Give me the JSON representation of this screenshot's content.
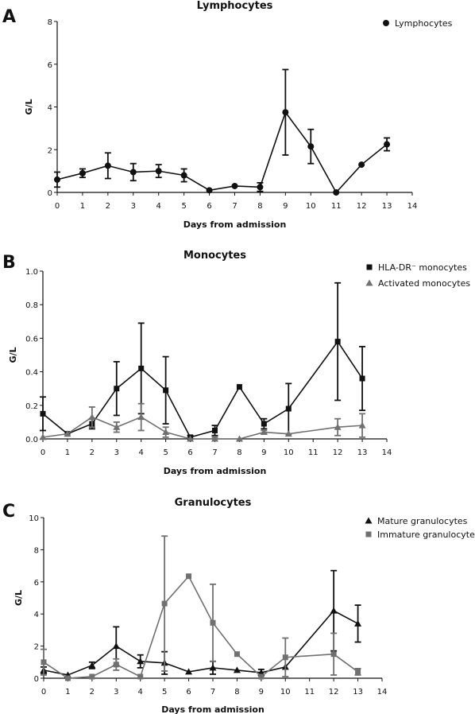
{
  "chart_data": [
    {
      "type": "line",
      "panel_label": "A",
      "title": "Lymphocytes",
      "xlabel": "Days from admission",
      "ylabel": "G/L",
      "xlim": [
        0,
        14
      ],
      "ylim": [
        0,
        8
      ],
      "xticks": [
        0,
        1,
        2,
        3,
        4,
        5,
        6,
        7,
        8,
        9,
        10,
        11,
        12,
        13,
        14
      ],
      "yticks": [
        0,
        2,
        4,
        6,
        8
      ],
      "legend_position": "top-right",
      "series": [
        {
          "name": "Lymphocytes",
          "marker": "circle",
          "color": "#111111",
          "points": [
            {
              "x": 0,
              "y": 0.6,
              "err": 0.35
            },
            {
              "x": 1,
              "y": 0.9,
              "err": 0.2
            },
            {
              "x": 2,
              "y": 1.25,
              "err": 0.6
            },
            {
              "x": 3,
              "y": 0.95,
              "err": 0.4
            },
            {
              "x": 4,
              "y": 1.0,
              "err": 0.3
            },
            {
              "x": 5,
              "y": 0.8,
              "err": 0.3
            },
            {
              "x": 6,
              "y": 0.1,
              "err": 0
            },
            {
              "x": 7,
              "y": 0.3,
              "err": 0
            },
            {
              "x": 8,
              "y": 0.25,
              "err": 0.2
            },
            {
              "x": 9,
              "y": 3.75,
              "err": 2.0
            },
            {
              "x": 10,
              "y": 2.15,
              "err": 0.8
            },
            {
              "x": 11,
              "y": 0.0,
              "err": 0
            },
            {
              "x": 12,
              "y": 1.3,
              "err": 0
            },
            {
              "x": 13,
              "y": 2.25,
              "err": 0.3
            }
          ]
        }
      ]
    },
    {
      "type": "line",
      "panel_label": "B",
      "title": "Monocytes",
      "xlabel": "Days from admission",
      "ylabel": "G/L",
      "xlim": [
        0,
        14
      ],
      "ylim": [
        0,
        1.0
      ],
      "xticks": [
        0,
        1,
        2,
        3,
        4,
        5,
        6,
        7,
        8,
        9,
        10,
        11,
        12,
        13,
        14
      ],
      "yticks": [
        0,
        0.2,
        0.4,
        0.6,
        0.8,
        1.0
      ],
      "legend_position": "top-right",
      "series": [
        {
          "name": "HLA-DR⁻ monocytes",
          "marker": "square",
          "color": "#111111",
          "points": [
            {
              "x": 0,
              "y": 0.15,
              "err": 0.1
            },
            {
              "x": 1,
              "y": 0.03,
              "err": 0
            },
            {
              "x": 2,
              "y": 0.09,
              "err": 0.03
            },
            {
              "x": 3,
              "y": 0.3,
              "err": 0.16
            },
            {
              "x": 4,
              "y": 0.42,
              "err": 0.27
            },
            {
              "x": 5,
              "y": 0.29,
              "err": 0.2
            },
            {
              "x": 6,
              "y": 0.01,
              "err": 0.01
            },
            {
              "x": 7,
              "y": 0.05,
              "err": 0.03
            },
            {
              "x": 8,
              "y": 0.31,
              "err": 0
            },
            {
              "x": 9,
              "y": 0.09,
              "err": 0.03
            },
            {
              "x": 10,
              "y": 0.18,
              "err": 0.15
            },
            {
              "x": 12,
              "y": 0.58,
              "err": 0.35
            },
            {
              "x": 13,
              "y": 0.36,
              "err": 0.19
            }
          ]
        },
        {
          "name": "Activated monocytes",
          "marker": "triangle",
          "color": "#707070",
          "points": [
            {
              "x": 0,
              "y": 0.01,
              "err": 0
            },
            {
              "x": 1,
              "y": 0.03,
              "err": 0
            },
            {
              "x": 2,
              "y": 0.13,
              "err": 0.06
            },
            {
              "x": 3,
              "y": 0.07,
              "err": 0.03
            },
            {
              "x": 4,
              "y": 0.13,
              "err": 0.08
            },
            {
              "x": 5,
              "y": 0.04,
              "err": 0.03
            },
            {
              "x": 6,
              "y": 0.0,
              "err": 0
            },
            {
              "x": 7,
              "y": 0.0,
              "err": 0.01
            },
            {
              "x": 8,
              "y": 0.0,
              "err": 0
            },
            {
              "x": 9,
              "y": 0.04,
              "err": 0.01
            },
            {
              "x": 10,
              "y": 0.03,
              "err": 0
            },
            {
              "x": 12,
              "y": 0.07,
              "err": 0.05
            },
            {
              "x": 13,
              "y": 0.08,
              "err": 0.07
            }
          ]
        }
      ]
    },
    {
      "type": "line",
      "panel_label": "C",
      "title": "Granulocytes",
      "xlabel": "Days from admission",
      "ylabel": "G/L",
      "xlim": [
        0,
        14
      ],
      "ylim": [
        0,
        10
      ],
      "xticks": [
        0,
        1,
        2,
        3,
        4,
        5,
        6,
        7,
        8,
        9,
        10,
        11,
        12,
        13,
        14
      ],
      "yticks": [
        0,
        2,
        4,
        6,
        8,
        10
      ],
      "legend_position": "top-right",
      "series": [
        {
          "name": "Mature granulocytes",
          "marker": "triangle",
          "color": "#111111",
          "points": [
            {
              "x": 0,
              "y": 0.5,
              "err": 0.2
            },
            {
              "x": 1,
              "y": 0.2,
              "err": 0
            },
            {
              "x": 2,
              "y": 0.8,
              "err": 0.2
            },
            {
              "x": 3,
              "y": 2.0,
              "err": 1.2
            },
            {
              "x": 4,
              "y": 1.05,
              "err": 0.4
            },
            {
              "x": 5,
              "y": 0.95,
              "err": 0.7
            },
            {
              "x": 6,
              "y": 0.4,
              "err": 0
            },
            {
              "x": 7,
              "y": 0.65,
              "err": 0.4
            },
            {
              "x": 8,
              "y": 0.5,
              "err": 0
            },
            {
              "x": 9,
              "y": 0.35,
              "err": 0.2
            },
            {
              "x": 10,
              "y": 0.7,
              "err": 0
            },
            {
              "x": 12,
              "y": 4.2,
              "err": 2.5
            },
            {
              "x": 13,
              "y": 3.4,
              "err": 1.15
            }
          ]
        },
        {
          "name": "Immature granulocytes",
          "marker": "square",
          "color": "#707070",
          "points": [
            {
              "x": 0,
              "y": 1.0,
              "err": 0.8
            },
            {
              "x": 1,
              "y": 0.0,
              "err": 0
            },
            {
              "x": 2,
              "y": 0.1,
              "err": 0
            },
            {
              "x": 3,
              "y": 0.85,
              "err": 0.35
            },
            {
              "x": 4,
              "y": 0.1,
              "err": 0
            },
            {
              "x": 5,
              "y": 4.65,
              "err": 4.2
            },
            {
              "x": 6,
              "y": 6.35,
              "err": 0
            },
            {
              "x": 7,
              "y": 3.45,
              "err": 2.4
            },
            {
              "x": 8,
              "y": 1.5,
              "err": 0
            },
            {
              "x": 9,
              "y": 0.1,
              "err": 0
            },
            {
              "x": 10,
              "y": 1.3,
              "err": 1.2
            },
            {
              "x": 12,
              "y": 1.5,
              "err": 1.3
            },
            {
              "x": 13,
              "y": 0.4,
              "err": 0.2
            }
          ]
        }
      ]
    }
  ]
}
